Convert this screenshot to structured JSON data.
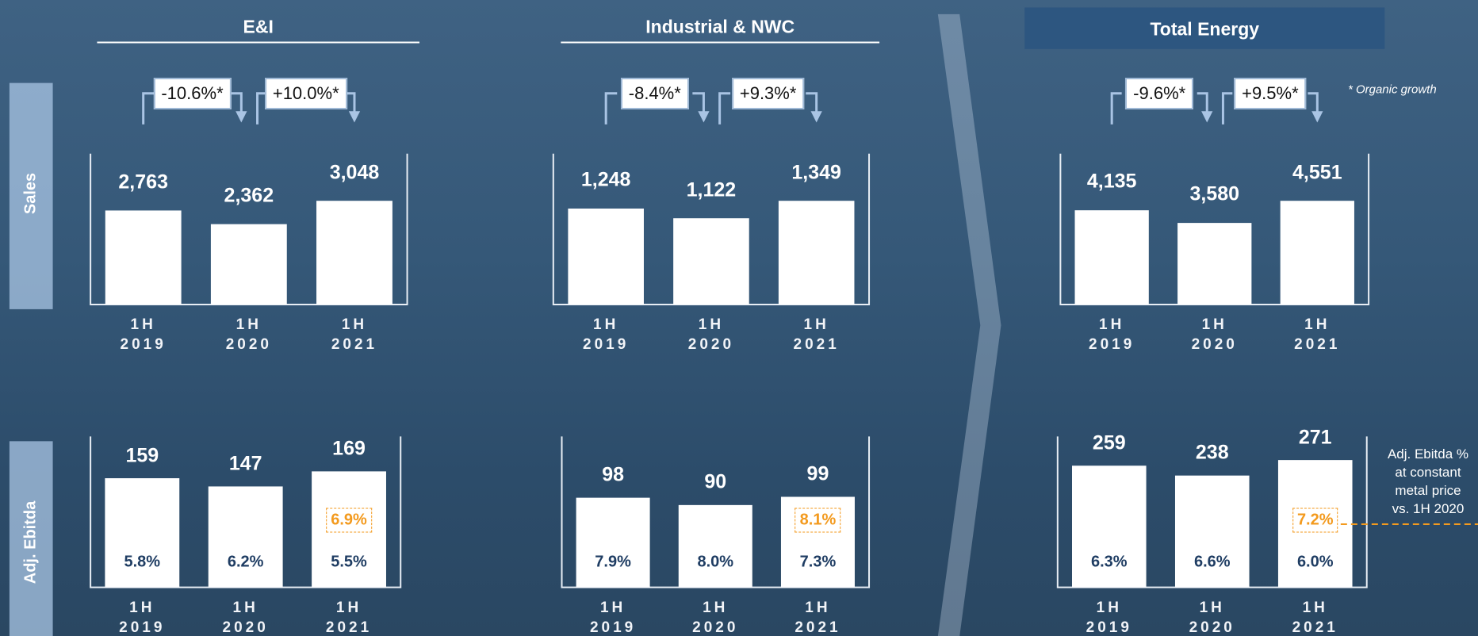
{
  "sections": [
    {
      "title": "E&I",
      "growth": [
        "-10.6%*",
        "+10.0%*"
      ]
    },
    {
      "title": "Industrial & NWC",
      "growth": [
        "-8.4%*",
        "+9.3%*"
      ]
    },
    {
      "title": "Total Energy",
      "growth": [
        "-9.6%*",
        "+9.5%*"
      ]
    }
  ],
  "row_labels": [
    "Sales",
    "Adj. Ebitda"
  ],
  "note": "* Organic growth",
  "side_note": [
    "Adj. Ebitda %",
    "at constant",
    "metal price",
    "vs. 1H 2020"
  ],
  "chart_data": [
    {
      "type": "bar",
      "categories": [
        "1H 2019",
        "1H 2020",
        "1H 2021"
      ],
      "values": [
        2763,
        2362,
        3048
      ],
      "value_labels": [
        "2,763",
        "2,362",
        "3,048"
      ],
      "color": "#ffffff"
    },
    {
      "type": "bar",
      "categories": [
        "1H 2019",
        "1H 2020",
        "1H 2021"
      ],
      "values": [
        1248,
        1122,
        1349
      ],
      "value_labels": [
        "1,248",
        "1,122",
        "1,349"
      ],
      "color": "#ffffff"
    },
    {
      "type": "bar",
      "categories": [
        "1H 2019",
        "1H 2020",
        "1H 2021"
      ],
      "values": [
        4135,
        3580,
        4551
      ],
      "value_labels": [
        "4,135",
        "3,580",
        "4,551"
      ],
      "color": "#ffffff"
    },
    {
      "type": "bar",
      "categories": [
        "1H 2019",
        "1H 2020",
        "1H 2021"
      ],
      "values": [
        159,
        147,
        169
      ],
      "color": "#ffffff",
      "margin_labels": [
        "5.8%",
        "6.2%",
        "5.5%"
      ],
      "highlight_label": "6.9%"
    },
    {
      "type": "bar",
      "categories": [
        "1H 2019",
        "1H 2020",
        "1H 2021"
      ],
      "values": [
        98,
        90,
        99
      ],
      "color": "#ffffff",
      "margin_labels": [
        "7.9%",
        "8.0%",
        "7.3%"
      ],
      "highlight_label": "8.1%"
    },
    {
      "type": "bar",
      "categories": [
        "1H 2019",
        "1H 2020",
        "1H 2021"
      ],
      "values": [
        259,
        238,
        271
      ],
      "color": "#ffffff",
      "margin_labels": [
        "6.3%",
        "6.6%",
        "6.0%"
      ],
      "highlight_label": "7.2%"
    }
  ]
}
